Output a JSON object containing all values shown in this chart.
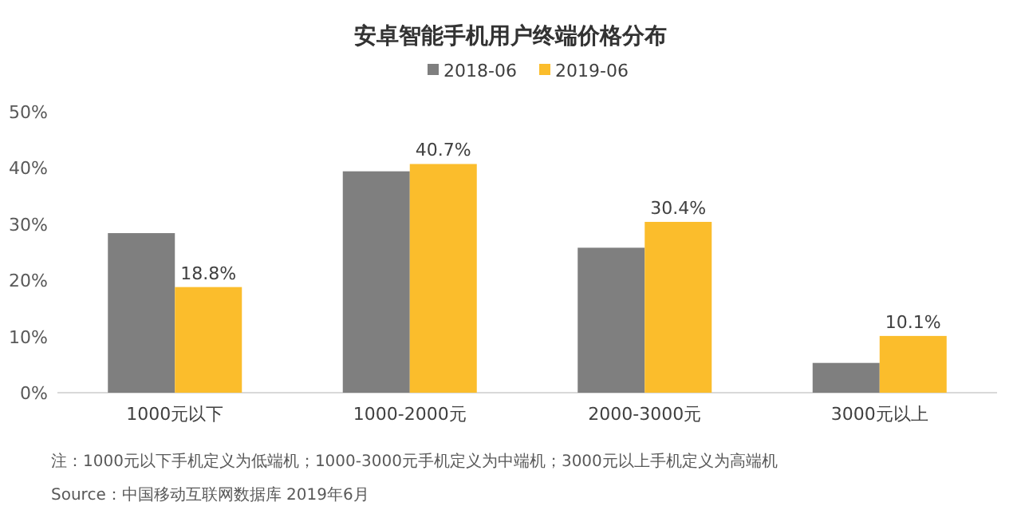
{
  "chart_data": {
    "type": "bar",
    "title": "安卓智能手机用户终端价格分布",
    "categories": [
      "1000元以下",
      "1000-2000元",
      "2000-3000元",
      "3000元以上"
    ],
    "series": [
      {
        "name": "2018-06",
        "color": "#7f7f7f",
        "values": [
          28.4,
          39.4,
          25.8,
          5.3
        ]
      },
      {
        "name": "2019-06",
        "color": "#fbbd2c",
        "values": [
          18.8,
          40.7,
          30.4,
          10.1
        ],
        "value_labels": [
          "18.8%",
          "40.7%",
          "30.4%",
          "10.1%"
        ]
      }
    ],
    "ylim": [
      0,
      50
    ],
    "yticks": [
      {
        "value": 0,
        "label": "0%"
      },
      {
        "value": 10,
        "label": "10%"
      },
      {
        "value": 20,
        "label": "20%"
      },
      {
        "value": 30,
        "label": "30%"
      },
      {
        "value": 40,
        "label": "40%"
      },
      {
        "value": 50,
        "label": "50%"
      }
    ],
    "legend": "top",
    "grid": false,
    "annotations": [
      "注：1000元以下手机定义为低端机；1000-3000元手机定义为中端机；3000元以上手机定义为高端机",
      "Source：中国移动互联网数据库 2019年6月"
    ]
  }
}
